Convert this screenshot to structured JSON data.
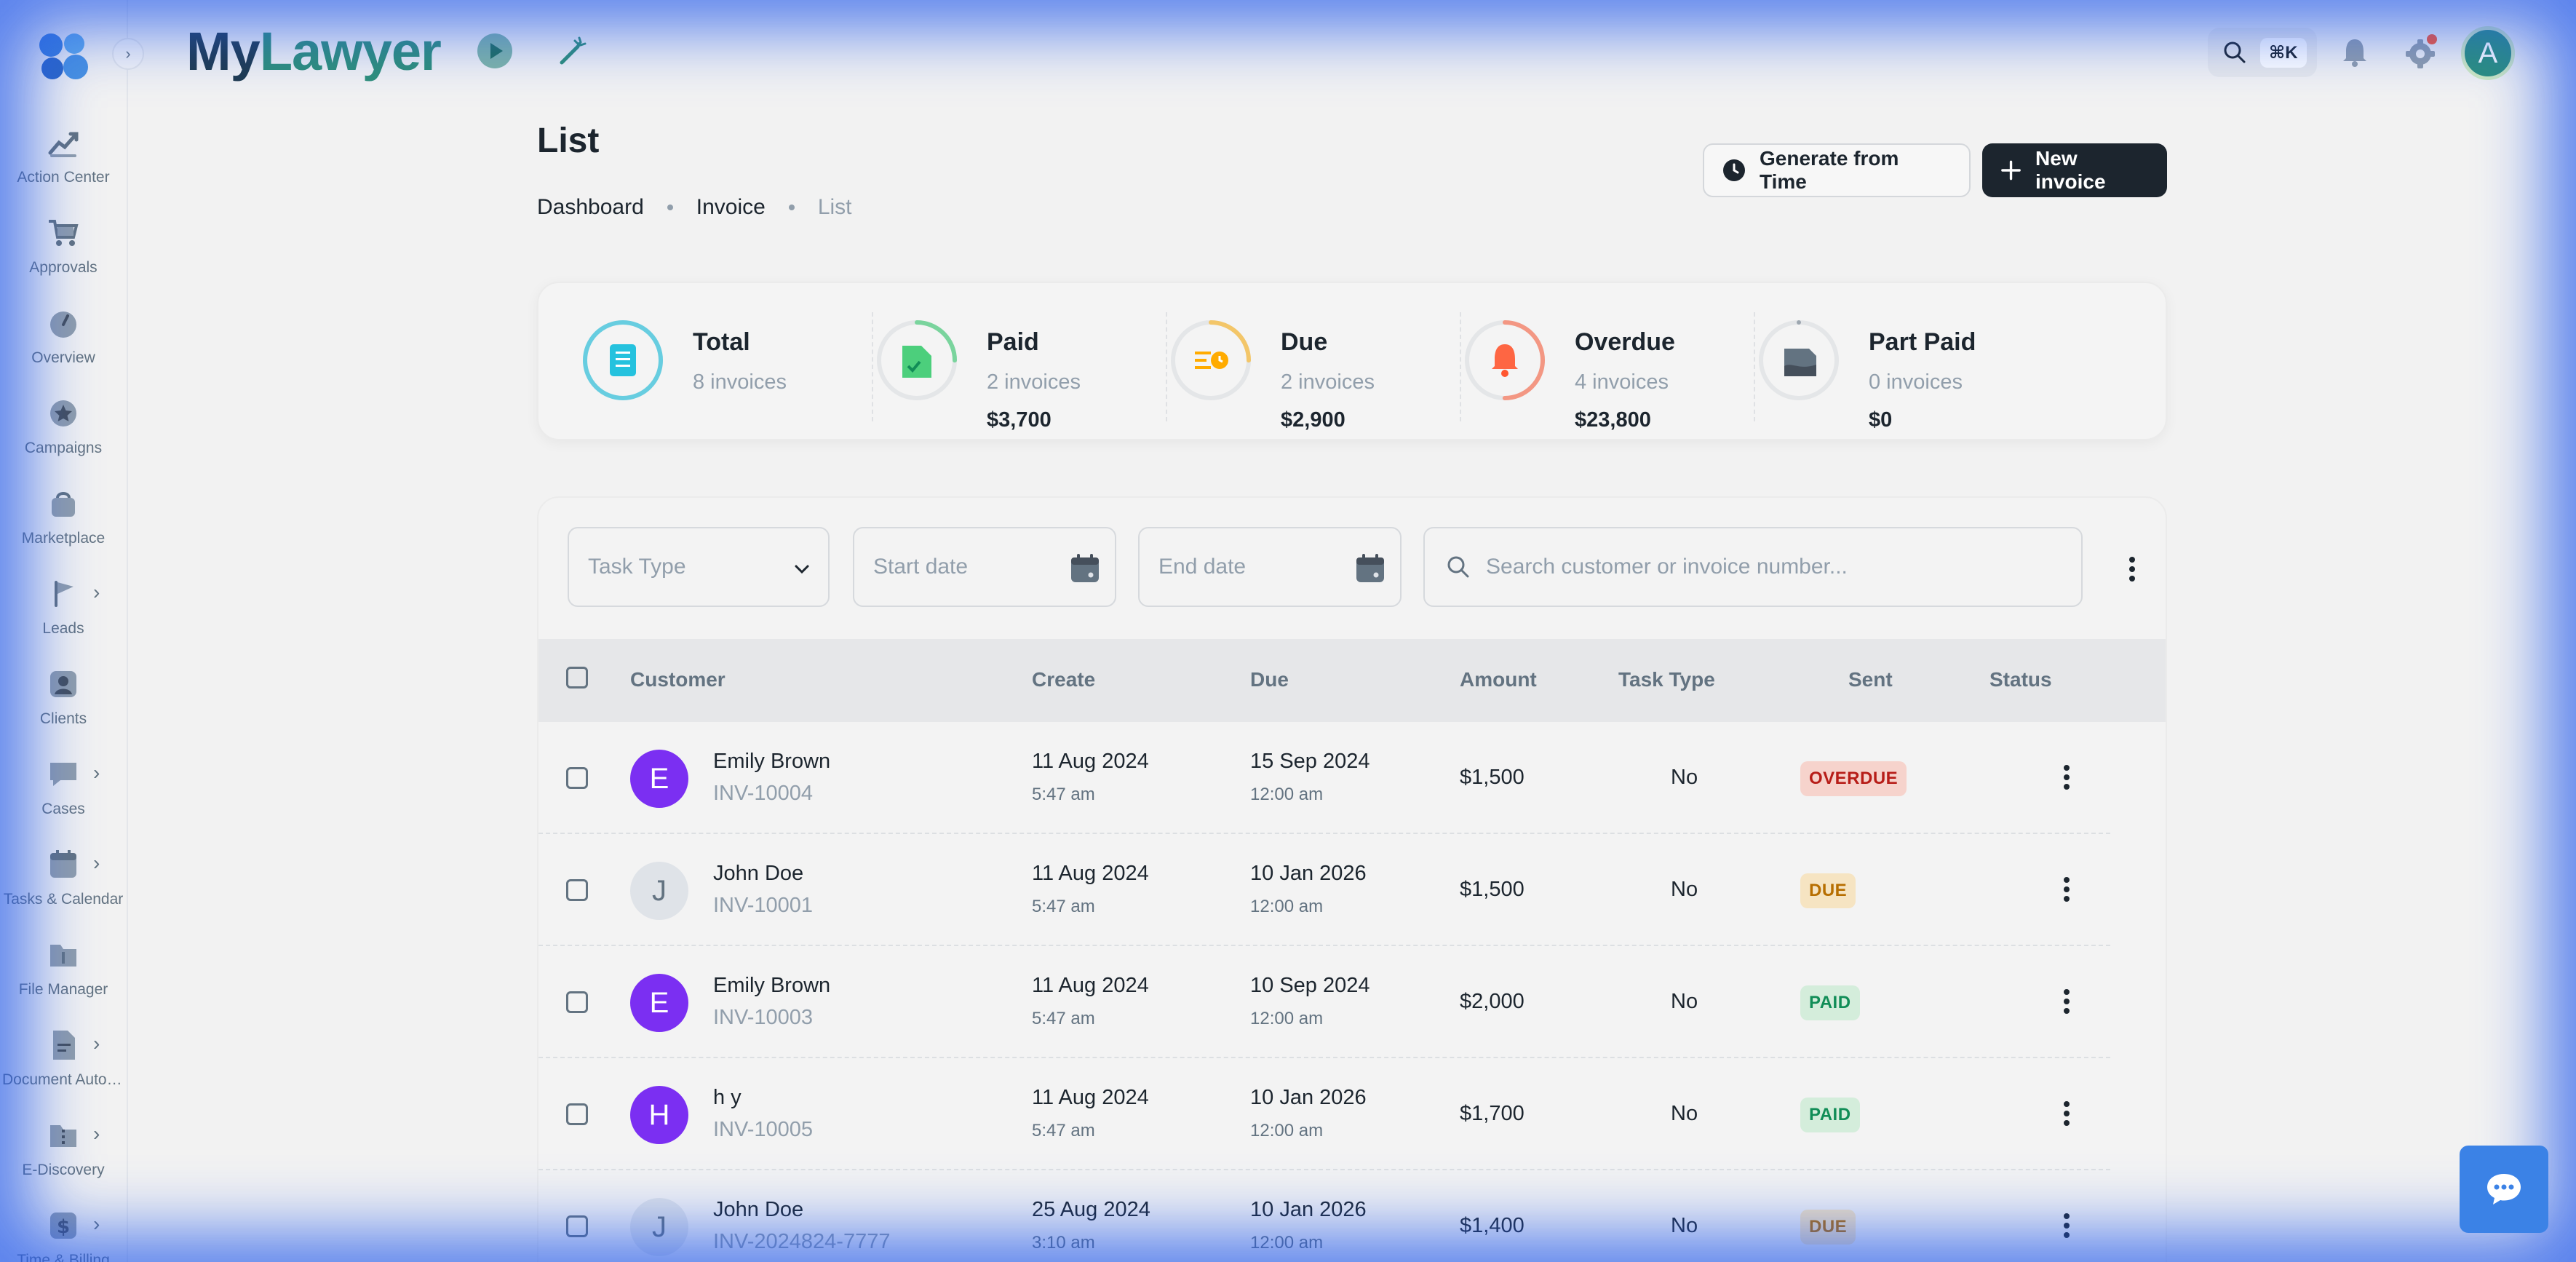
{
  "brand": {
    "part1": "My",
    "part2": "Lawyer"
  },
  "sidebar": {
    "items": [
      {
        "label": "Action Center",
        "icon": "chart-trend-icon",
        "chevron": false
      },
      {
        "label": "Approvals",
        "icon": "cart-icon",
        "chevron": false
      },
      {
        "label": "Overview",
        "icon": "gauge-icon",
        "chevron": false
      },
      {
        "label": "Campaigns",
        "icon": "star-badge-icon",
        "chevron": false
      },
      {
        "label": "Marketplace",
        "icon": "bag-icon",
        "chevron": false
      },
      {
        "label": "Leads",
        "icon": "flag-icon",
        "chevron": true
      },
      {
        "label": "Clients",
        "icon": "user-card-icon",
        "chevron": false
      },
      {
        "label": "Cases",
        "icon": "chat-bubble-icon",
        "chevron": true
      },
      {
        "label": "Tasks & Calendar",
        "icon": "calendar-icon",
        "chevron": true
      },
      {
        "label": "File Manager",
        "icon": "folder-icon",
        "chevron": false
      },
      {
        "label": "Document Automation",
        "icon": "document-icon",
        "chevron": true
      },
      {
        "label": "E-Discovery",
        "icon": "folder-zip-icon",
        "chevron": true
      },
      {
        "label": "Time & Billing",
        "icon": "dollar-icon",
        "chevron": true
      }
    ]
  },
  "header": {
    "shortcut": "⌘K",
    "avatar_initial": "A"
  },
  "page": {
    "title": "List",
    "breadcrumb": [
      "Dashboard",
      "Invoice",
      "List"
    ],
    "btn_generate": "Generate from Time",
    "btn_new": "New invoice"
  },
  "summary": [
    {
      "title": "Total",
      "count": "8 invoices",
      "amount": "",
      "color": "#00b8d9",
      "progress": 100
    },
    {
      "title": "Paid",
      "count": "2 invoices",
      "amount": "$3,700",
      "color": "#22c55e",
      "progress": 25
    },
    {
      "title": "Due",
      "count": "2 invoices",
      "amount": "$2,900",
      "color": "#ffab00",
      "progress": 25
    },
    {
      "title": "Overdue",
      "count": "4 invoices",
      "amount": "$23,800",
      "color": "#ff5630",
      "progress": 50
    },
    {
      "title": "Part Paid",
      "count": "0 invoices",
      "amount": "$0",
      "color": "#637381",
      "progress": 0
    }
  ],
  "filters": {
    "task_type": "Task Type",
    "start_date": "Start date",
    "end_date": "End date",
    "search_placeholder": "Search customer or invoice number..."
  },
  "table": {
    "columns": [
      "Customer",
      "Create",
      "Due",
      "Amount",
      "Task Type",
      "Sent",
      "Status"
    ],
    "rows": [
      {
        "initial": "E",
        "avatar_color": "#7b2ff2",
        "name": "Emily Brown",
        "invoice": "INV-10004",
        "create_date": "11 Aug 2024",
        "create_time": "5:47 am",
        "due_date": "15 Sep 2024",
        "due_time": "12:00 am",
        "amount": "$1,500",
        "sent": "No",
        "status": "OVERDUE",
        "status_class": "overdue"
      },
      {
        "initial": "J",
        "avatar_color": "#dfe3e8",
        "name": "John Doe",
        "invoice": "INV-10001",
        "create_date": "11 Aug 2024",
        "create_time": "5:47 am",
        "due_date": "10 Jan 2026",
        "due_time": "12:00 am",
        "amount": "$1,500",
        "sent": "No",
        "status": "DUE",
        "status_class": "due"
      },
      {
        "initial": "E",
        "avatar_color": "#7b2ff2",
        "name": "Emily Brown",
        "invoice": "INV-10003",
        "create_date": "11 Aug 2024",
        "create_time": "5:47 am",
        "due_date": "10 Sep 2024",
        "due_time": "12:00 am",
        "amount": "$2,000",
        "sent": "No",
        "status": "PAID",
        "status_class": "paid"
      },
      {
        "initial": "H",
        "avatar_color": "#7b2ff2",
        "name": "h y",
        "invoice": "INV-10005",
        "create_date": "11 Aug 2024",
        "create_time": "5:47 am",
        "due_date": "10 Jan 2026",
        "due_time": "12:00 am",
        "amount": "$1,700",
        "sent": "No",
        "status": "PAID",
        "status_class": "paid"
      },
      {
        "initial": "J",
        "avatar_color": "#dfe3e8",
        "name": "John Doe",
        "invoice": "INV-2024824-7777",
        "create_date": "25 Aug 2024",
        "create_time": "3:10 am",
        "due_date": "10 Jan 2026",
        "due_time": "12:00 am",
        "amount": "$1,400",
        "sent": "No",
        "status": "DUE",
        "status_class": "due"
      }
    ]
  }
}
